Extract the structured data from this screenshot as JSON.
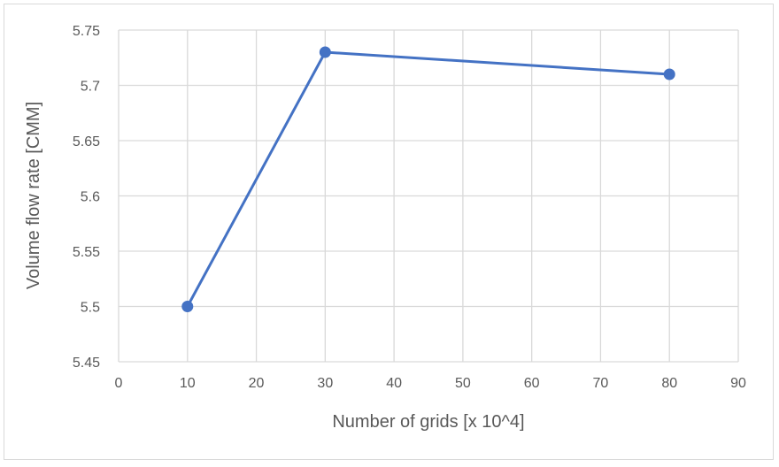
{
  "chart_data": {
    "type": "line",
    "title": "",
    "xlabel": "Number of grids [x 10^4]",
    "ylabel": "Volume flow rate [CMM]",
    "xlim": [
      0,
      90
    ],
    "ylim": [
      5.45,
      5.75
    ],
    "x_ticks": [
      "0",
      "10",
      "20",
      "30",
      "40",
      "50",
      "60",
      "70",
      "80",
      "90"
    ],
    "y_ticks": [
      "5.45",
      "5.5",
      "5.55",
      "5.6",
      "5.65",
      "5.7",
      "5.75"
    ],
    "grid": true,
    "legend": "none",
    "series": [
      {
        "x": [
          10,
          30,
          80
        ],
        "y": [
          5.5,
          5.73,
          5.71
        ],
        "color": "#4472c4",
        "marker": "circle"
      }
    ]
  }
}
